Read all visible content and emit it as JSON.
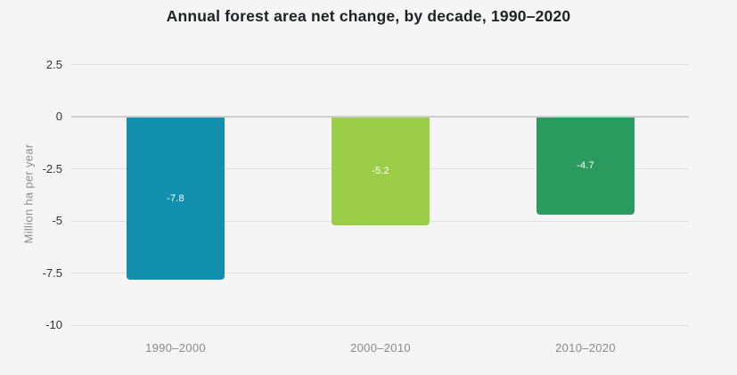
{
  "chart_data": {
    "type": "bar",
    "title": "Annual forest area net change, by decade, 1990–2020",
    "xlabel": "",
    "ylabel": "Million ha per year",
    "categories": [
      "1990–2000",
      "2000–2010",
      "2010–2020"
    ],
    "values": [
      -7.8,
      -5.2,
      -4.7
    ],
    "value_labels": [
      "-7.8",
      "-5.2",
      "-4.7"
    ],
    "bar_colors": [
      "#1290ad",
      "#9bcd49",
      "#2a9a5f"
    ],
    "ylim": [
      -10,
      2.5
    ],
    "yticks": [
      2.5,
      0,
      -2.5,
      -5,
      -7.5,
      -10
    ],
    "ytick_labels": [
      "2.5",
      "0",
      "-2.5",
      "-5",
      "-7.5",
      "-10"
    ],
    "grid": "horizontal",
    "legend": "none",
    "colors": {
      "background": "#f5f5f5",
      "gridline": "#e0e0e0",
      "zero_line": "#cdcdcd",
      "title_text": "#1f2125",
      "ytick_text": "#333333",
      "xtick_text": "#8a8a8a",
      "axis_title_text": "#8f8f8f",
      "bar_label_text": "#ffffff"
    }
  }
}
